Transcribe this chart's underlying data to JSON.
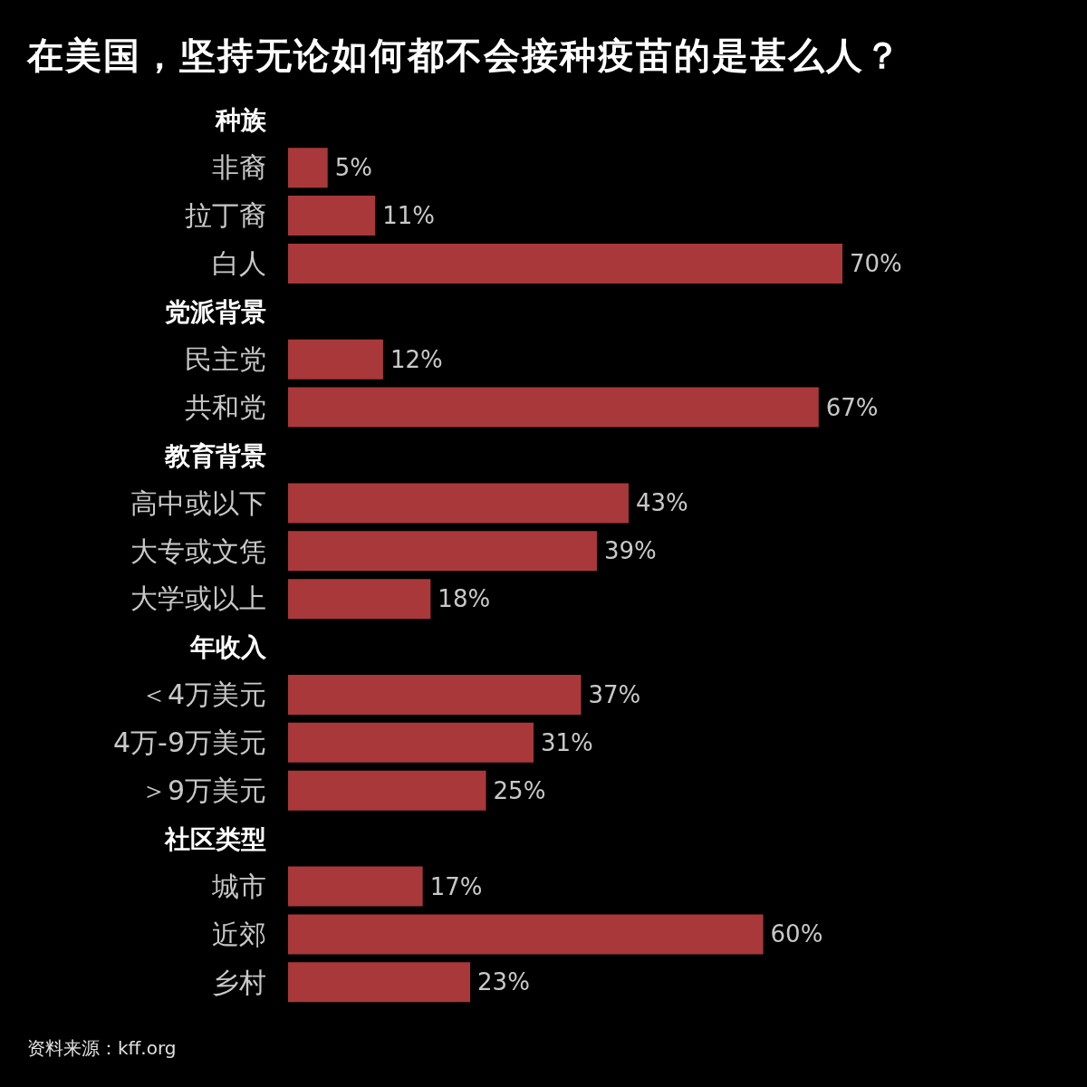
{
  "chart_data": {
    "type": "bar",
    "orientation": "horizontal",
    "title": "在美国，坚持无论如何都不会接种疫苗的是甚么人？",
    "categories": [
      "种族",
      "非裔",
      "拉丁裔",
      "白人",
      "党派背景",
      "民主党",
      "共和党",
      "教育背景",
      "高中或以下",
      "大专或文凭",
      "大学或以上",
      "年收入",
      "＜4万美元",
      "4万-9万美元",
      "＞9万美元",
      "社区类型",
      "城市",
      "近郊",
      "乡村"
    ],
    "values": [
      null,
      5,
      11,
      70,
      null,
      12,
      67,
      null,
      43,
      39,
      18,
      null,
      37,
      31,
      25,
      null,
      17,
      60,
      23
    ],
    "value_labels": [
      null,
      "5%",
      "11%",
      "70%",
      null,
      "12%",
      "67%",
      null,
      "43%",
      "39%",
      "18%",
      null,
      "37%",
      "31%",
      "25%",
      null,
      "17%",
      "60%",
      "23%"
    ],
    "color": "#a8383a",
    "annotations": [
      "资料来源：kff.org"
    ]
  }
}
